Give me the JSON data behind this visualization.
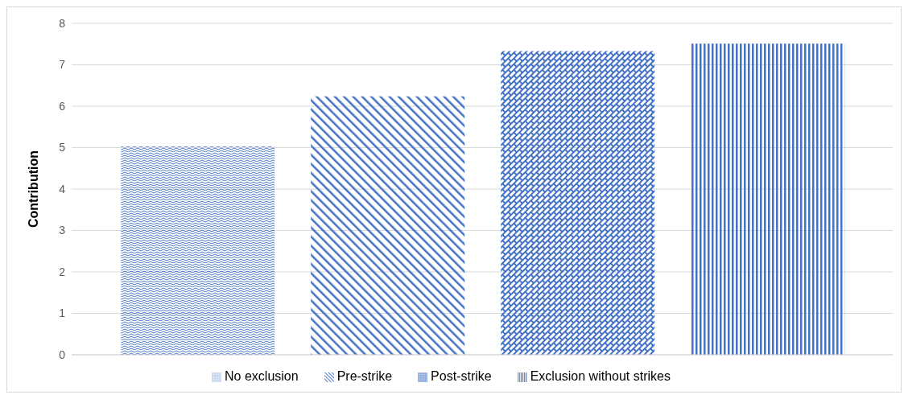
{
  "chart_data": {
    "type": "bar",
    "ylabel": "Contribution",
    "categories": [
      null
    ],
    "series": [
      {
        "name": "No exclusion",
        "color": "#4472c4",
        "values": [
          5.03
        ]
      },
      {
        "name": "Pre-strike",
        "color": "#4472c4",
        "values": [
          6.24
        ]
      },
      {
        "name": "Post-strike",
        "color": "#4472c4",
        "values": [
          7.33
        ]
      },
      {
        "name": "Exclusion without strikes",
        "color": "#4472c4",
        "values": [
          7.51
        ]
      }
    ],
    "ylim": [
      0,
      8
    ],
    "yticks": [
      0,
      1,
      2,
      3,
      4,
      5,
      6,
      7,
      8
    ],
    "grid": "y",
    "legend": "bottom"
  }
}
